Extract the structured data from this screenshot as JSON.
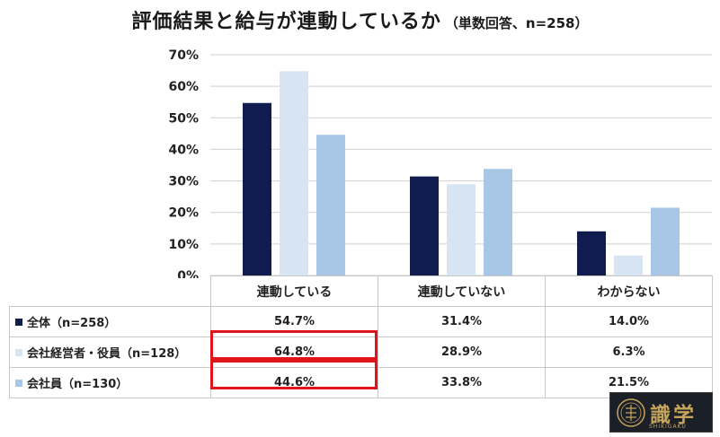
{
  "title": {
    "main": "評価結果と給与が連動しているか",
    "sub": "（単数回答、n=258）"
  },
  "chart_data": {
    "type": "bar",
    "categories": [
      "連動している",
      "連動していない",
      "わからない"
    ],
    "ylim": [
      0,
      70
    ],
    "yticks": [
      "0%",
      "10%",
      "20%",
      "30%",
      "40%",
      "50%",
      "60%",
      "70%"
    ],
    "grid": true,
    "series": [
      {
        "name": "全体（n=258）",
        "color": "#0f1c4d",
        "values": [
          54.7,
          31.4,
          14.0
        ],
        "labels": [
          "54.7%",
          "31.4%",
          "14.0%"
        ]
      },
      {
        "name": "会社経営者・役員（n=128）",
        "color": "#d7e4f2",
        "values": [
          64.8,
          28.9,
          6.3
        ],
        "labels": [
          "64.8%",
          "28.9%",
          "6.3%"
        ]
      },
      {
        "name": "会社員（n=130）",
        "color": "#a8c6e6",
        "values": [
          44.6,
          33.8,
          21.5
        ],
        "labels": [
          "44.6%",
          "33.8%",
          "21.5%"
        ]
      }
    ],
    "highlight_color": "#e0141b"
  },
  "logo": {
    "text": "識学",
    "sub": "SHIKIGAKU"
  }
}
